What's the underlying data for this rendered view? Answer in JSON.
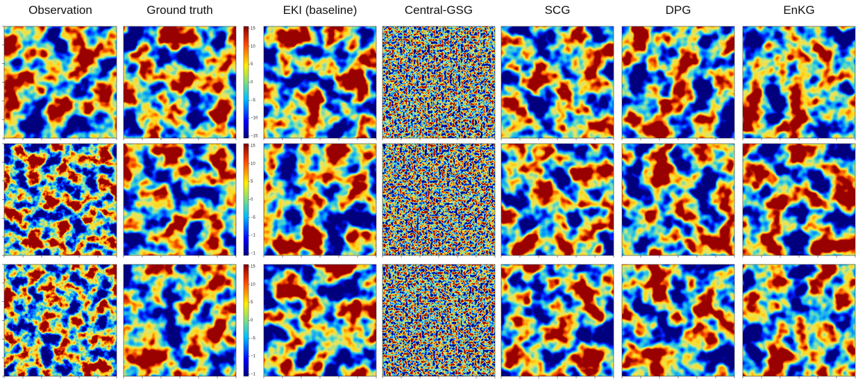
{
  "columns": [
    "Observation",
    "Ground truth",
    "EKI (baseline)",
    "Central-GSG",
    "SCG",
    "DPG",
    "EnKG"
  ],
  "colorbars": [
    {
      "ticks": [
        "15",
        "10",
        "5",
        "0",
        "−5",
        "−10",
        "−15"
      ]
    },
    {
      "ticks": [
        "15",
        "10",
        "5",
        "0",
        "−5",
        "−1",
        "−1"
      ]
    },
    {
      "ticks": [
        "15",
        "10",
        "5",
        "0",
        "−5",
        "−1",
        "−1"
      ]
    }
  ]
}
